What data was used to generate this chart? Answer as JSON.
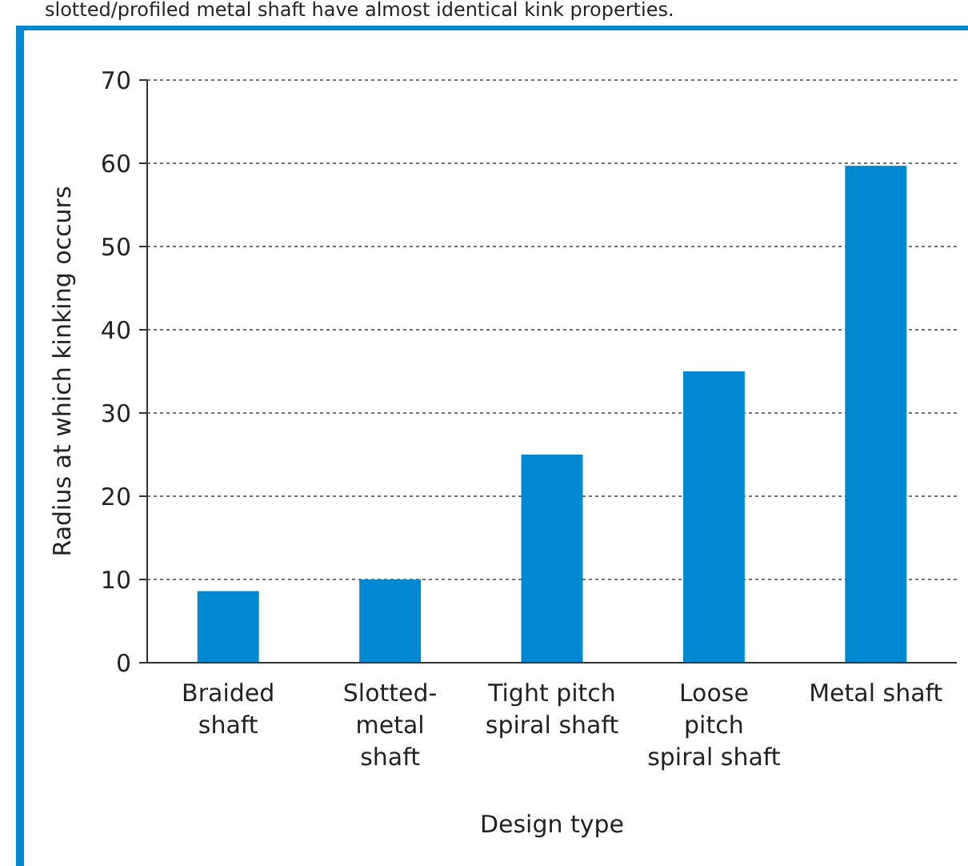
{
  "chart_data": {
    "type": "bar",
    "annotations": [
      "slotted/profiled metal shaft have almost identical kink properties."
    ],
    "xlabel": "Design type",
    "ylabel": "Radius at which kinking occurs",
    "categories": [
      "Braided\nshaft",
      "Slotted-\nmetal\nshaft",
      "Tight pitch\nspiral shaft",
      "Loose\npitch\nspiral shaft",
      "Metal shaft"
    ],
    "values": [
      8.6,
      10,
      25,
      35,
      59.7
    ],
    "color": "#0088d1",
    "ylim": [
      0,
      70
    ],
    "yticks": [
      0,
      10,
      20,
      30,
      40,
      50,
      60,
      70
    ],
    "grid": "y"
  }
}
